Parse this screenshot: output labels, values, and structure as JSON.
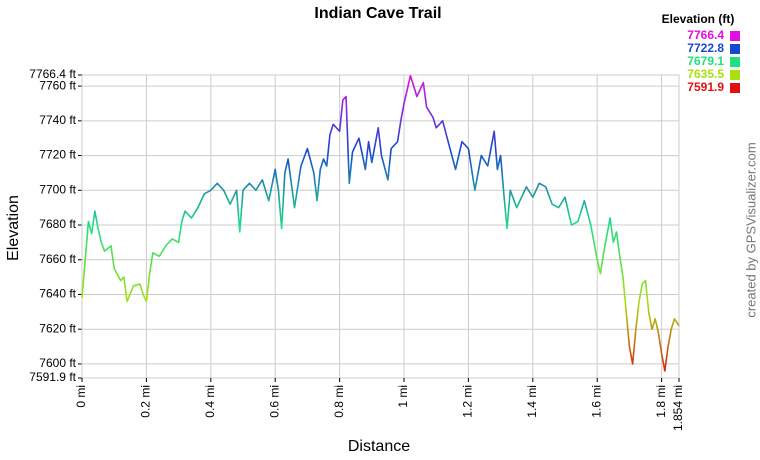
{
  "chart_data": {
    "type": "line",
    "title": "Indian Cave Trail",
    "x_label": "Distance",
    "y_label": "Elevation",
    "watermark": "created by GPSVisualizer.com",
    "grid": true,
    "color_scale": {
      "title": "Elevation (ft)",
      "stops": [
        {
          "value": 7766.4,
          "color": "#e010e0"
        },
        {
          "value": 7722.8,
          "color": "#1848d0"
        },
        {
          "value": 7679.1,
          "color": "#20e080"
        },
        {
          "value": 7635.5,
          "color": "#a8e010"
        },
        {
          "value": 7591.9,
          "color": "#e01010"
        }
      ]
    },
    "xlim": [
      0,
      1.854
    ],
    "ylim": [
      7591.9,
      7766.4
    ],
    "xticks": [
      {
        "value": 0,
        "label": "0 mi"
      },
      {
        "value": 0.2,
        "label": "0.2 mi"
      },
      {
        "value": 0.4,
        "label": "0.4 mi"
      },
      {
        "value": 0.6,
        "label": "0.6 mi"
      },
      {
        "value": 0.8,
        "label": "0.8 mi"
      },
      {
        "value": 1,
        "label": "1 mi"
      },
      {
        "value": 1.2,
        "label": "1.2 mi"
      },
      {
        "value": 1.4,
        "label": "1.4 mi"
      },
      {
        "value": 1.6,
        "label": "1.6 mi"
      },
      {
        "value": 1.8,
        "label": "1.8 mi"
      },
      {
        "value": 1.854,
        "label": "1.854 mi"
      }
    ],
    "yticks": [
      {
        "value": 7591.9,
        "label": "7591.9 ft"
      },
      {
        "value": 7600,
        "label": "7600 ft"
      },
      {
        "value": 7620,
        "label": "7620 ft"
      },
      {
        "value": 7640,
        "label": "7640 ft"
      },
      {
        "value": 7660,
        "label": "7660 ft"
      },
      {
        "value": 7680,
        "label": "7680 ft"
      },
      {
        "value": 7700,
        "label": "7700 ft"
      },
      {
        "value": 7720,
        "label": "7720 ft"
      },
      {
        "value": 7740,
        "label": "7740 ft"
      },
      {
        "value": 7760,
        "label": "7760 ft"
      },
      {
        "value": 7766.4,
        "label": "7766.4 ft"
      }
    ],
    "x": [
      0,
      0.01,
      0.02,
      0.03,
      0.04,
      0.05,
      0.06,
      0.07,
      0.09,
      0.1,
      0.12,
      0.13,
      0.14,
      0.16,
      0.18,
      0.19,
      0.2,
      0.21,
      0.22,
      0.24,
      0.26,
      0.28,
      0.3,
      0.31,
      0.32,
      0.34,
      0.36,
      0.38,
      0.4,
      0.42,
      0.44,
      0.46,
      0.48,
      0.49,
      0.5,
      0.52,
      0.54,
      0.56,
      0.58,
      0.6,
      0.61,
      0.62,
      0.63,
      0.64,
      0.66,
      0.68,
      0.7,
      0.72,
      0.73,
      0.74,
      0.75,
      0.76,
      0.77,
      0.78,
      0.8,
      0.81,
      0.82,
      0.83,
      0.84,
      0.86,
      0.88,
      0.89,
      0.9,
      0.92,
      0.93,
      0.95,
      0.96,
      0.98,
      0.99,
      1.0,
      1.01,
      1.02,
      1.04,
      1.06,
      1.07,
      1.09,
      1.1,
      1.12,
      1.14,
      1.16,
      1.18,
      1.2,
      1.22,
      1.24,
      1.26,
      1.28,
      1.29,
      1.3,
      1.31,
      1.32,
      1.33,
      1.35,
      1.38,
      1.4,
      1.42,
      1.44,
      1.46,
      1.48,
      1.5,
      1.52,
      1.54,
      1.56,
      1.58,
      1.6,
      1.61,
      1.62,
      1.64,
      1.65,
      1.66,
      1.67,
      1.68,
      1.69,
      1.7,
      1.71,
      1.72,
      1.73,
      1.74,
      1.75,
      1.76,
      1.77,
      1.78,
      1.79,
      1.8,
      1.81,
      1.82,
      1.83,
      1.84,
      1.854
    ],
    "values": [
      7638,
      7660,
      7682,
      7675,
      7688,
      7678,
      7670,
      7665,
      7668,
      7655,
      7648,
      7650,
      7636,
      7645,
      7646,
      7640,
      7636,
      7652,
      7664,
      7662,
      7668,
      7672,
      7670,
      7682,
      7688,
      7684,
      7690,
      7698,
      7700,
      7704,
      7700,
      7692,
      7700,
      7676,
      7700,
      7704,
      7700,
      7706,
      7694,
      7712,
      7700,
      7678,
      7710,
      7718,
      7690,
      7714,
      7724,
      7710,
      7694,
      7712,
      7718,
      7714,
      7732,
      7738,
      7734,
      7752,
      7754,
      7704,
      7722,
      7730,
      7712,
      7728,
      7716,
      7736,
      7720,
      7706,
      7724,
      7728,
      7740,
      7750,
      7758,
      7766,
      7754,
      7762,
      7748,
      7742,
      7736,
      7740,
      7726,
      7712,
      7728,
      7724,
      7700,
      7720,
      7714,
      7734,
      7712,
      7720,
      7698,
      7678,
      7700,
      7690,
      7702,
      7696,
      7704,
      7702,
      7692,
      7690,
      7696,
      7680,
      7682,
      7694,
      7680,
      7660,
      7652,
      7664,
      7684,
      7670,
      7676,
      7662,
      7650,
      7630,
      7610,
      7600,
      7620,
      7636,
      7646,
      7648,
      7630,
      7620,
      7626,
      7618,
      7606,
      7596,
      7610,
      7620,
      7626,
      7622
    ]
  }
}
